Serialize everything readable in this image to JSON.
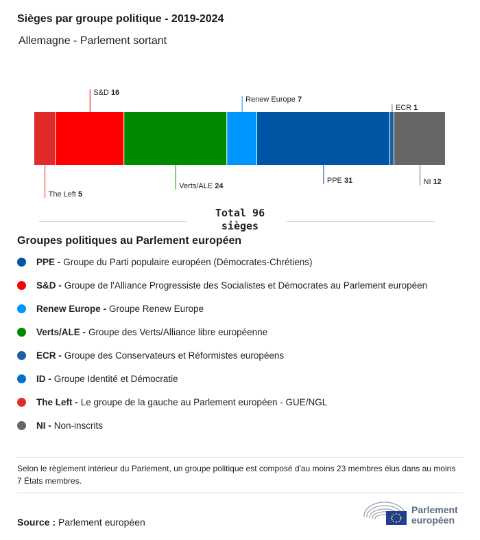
{
  "header": {
    "title": "Sièges par groupe politique - 2019-2024",
    "subtitle": "Allemagne - Parlement sortant"
  },
  "chart_data": {
    "type": "bar",
    "orientation": "stacked-horizontal",
    "total": 96,
    "total_label": "Total 96\nsièges",
    "segments": [
      {
        "name": "The Left",
        "value": 5,
        "color": "#e12b2b",
        "label_side": "bottom"
      },
      {
        "name": "S&D",
        "value": 16,
        "color": "#ff0000",
        "label_side": "top"
      },
      {
        "name": "Verts/ALE",
        "value": 24,
        "color": "#008a00",
        "label_side": "bottom"
      },
      {
        "name": "Renew Europe",
        "value": 7,
        "color": "#0096ff",
        "label_side": "top"
      },
      {
        "name": "PPE",
        "value": 31,
        "color": "#0055a5",
        "label_side": "bottom"
      },
      {
        "name": "ECR",
        "value": 1,
        "color": "#1e5fa3",
        "label_side": "top"
      },
      {
        "name": "NI",
        "value": 12,
        "color": "#666666",
        "label_side": "bottom"
      }
    ]
  },
  "legend": {
    "title": "Groupes politiques au Parlement européen",
    "items": [
      {
        "abbr": "PPE -",
        "desc": "Groupe du Parti populaire européen (Démocrates-Chrétiens)",
        "color": "#0055a5"
      },
      {
        "abbr": "S&D -",
        "desc": "Groupe de l'Alliance Progressiste des Socialistes et Démocrates au Parlement européen",
        "color": "#ff0000"
      },
      {
        "abbr": "Renew Europe -",
        "desc": "Groupe Renew Europe",
        "color": "#0096ff"
      },
      {
        "abbr": "Verts/ALE -",
        "desc": "Groupe des Verts/Alliance libre européenne",
        "color": "#008a00"
      },
      {
        "abbr": "ECR -",
        "desc": "Groupe des Conservateurs et Réformistes européens",
        "color": "#1e5fa3"
      },
      {
        "abbr": "ID -",
        "desc": "Groupe Identité et Démocratie",
        "color": "#0a6fc8"
      },
      {
        "abbr": "The Left -",
        "desc": "Le groupe de la gauche au Parlement européen - GUE/NGL",
        "color": "#e12b2b"
      },
      {
        "abbr": "NI -",
        "desc": "Non-inscrits",
        "color": "#666666"
      }
    ]
  },
  "note": "Selon le règlement intérieur du Parlement, un groupe politique est composé d'au moins 23 membres élus dans au moins 7 États membres.",
  "source": {
    "label": "Source :",
    "value": "Parlement européen"
  },
  "logo": {
    "line1": "Parlement",
    "line2": "européen",
    "icon": "hemicycle-eu-flag-icon"
  }
}
